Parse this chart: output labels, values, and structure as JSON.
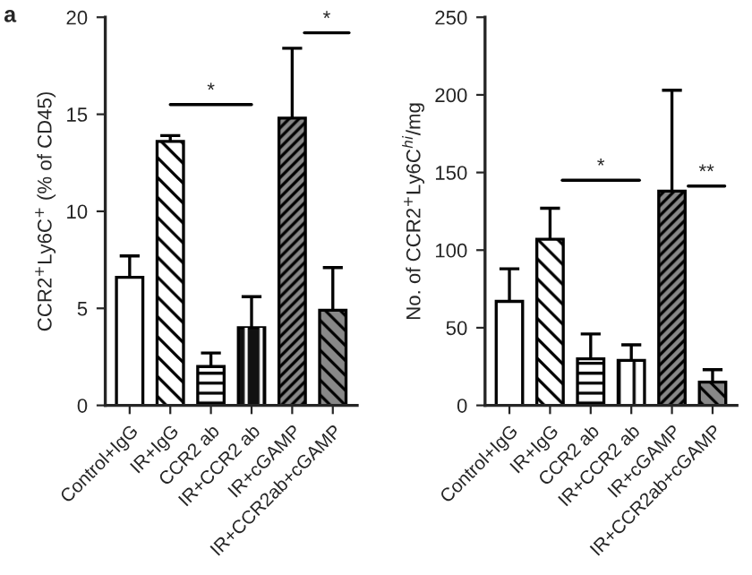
{
  "chart_data": [
    {
      "type": "bar",
      "ylabel": "CCR2$^{+}$Ly6C$^{+}$ (% of CD45)",
      "categories": [
        "Control+IgG",
        "IR+IgG",
        "CCR2 ab",
        "IR+CCR2 ab",
        "IR+cGAMP",
        "IR+CCR2ab+cGAMP"
      ],
      "values": [
        6.6,
        13.6,
        2.0,
        4.0,
        14.8,
        4.9
      ],
      "errors": [
        1.1,
        0.3,
        0.7,
        1.6,
        3.6,
        2.2
      ],
      "colors": [
        "#ffffff",
        "#ffffff",
        "#ffffff",
        "#111111",
        "#888888",
        "#888888"
      ],
      "ylim": [
        0,
        20
      ],
      "yticks": [
        0,
        5,
        10,
        15,
        20
      ],
      "annotations": [
        "a",
        "*",
        "*"
      ]
    },
    {
      "type": "bar",
      "ylabel": "No. of CCR2$^{+}$Ly6C$^{hi}$/mg",
      "categories": [
        "Control+IgG",
        "IR+IgG",
        "CCR2 ab",
        "IR+CCR2 ab",
        "IR+cGAMP",
        "IR+CCR2ab+cGAMP"
      ],
      "values": [
        67,
        107,
        30,
        29,
        138,
        15
      ],
      "errors": [
        21,
        20,
        16,
        10,
        65,
        8
      ],
      "colors": [
        "#ffffff",
        "#ffffff",
        "#ffffff",
        "#ffffff",
        "#888888",
        "#888888"
      ],
      "ylim": [
        0,
        250
      ],
      "yticks": [
        0,
        50,
        100,
        150,
        200,
        250
      ],
      "annotations": [
        "*",
        "**"
      ]
    }
  ]
}
